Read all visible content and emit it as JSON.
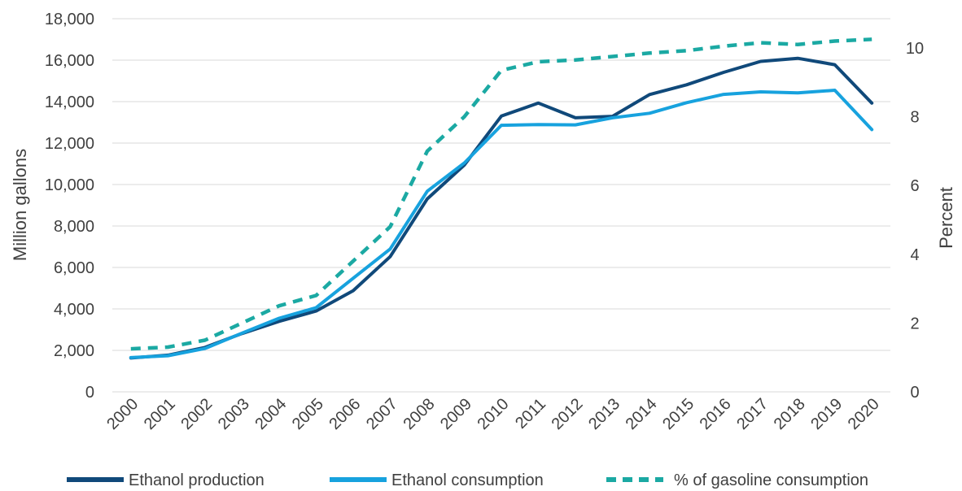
{
  "chart_data": {
    "type": "line",
    "x": [
      "2000",
      "2001",
      "2002",
      "2003",
      "2004",
      "2005",
      "2006",
      "2007",
      "2008",
      "2009",
      "2010",
      "2011",
      "2012",
      "2013",
      "2014",
      "2015",
      "2016",
      "2017",
      "2018",
      "2019",
      "2020"
    ],
    "ylabel": "Million gallons",
    "y2label": "Percent",
    "ylim": [
      0,
      18000
    ],
    "y2lim": [
      0,
      11
    ],
    "yticks": [
      "0",
      "2,000",
      "4,000",
      "6,000",
      "8,000",
      "10,000",
      "12,000",
      "14,000",
      "16,000",
      "18,000"
    ],
    "y2ticks": [
      "0",
      "2",
      "4",
      "6",
      "8",
      "10"
    ],
    "grid": true,
    "legend_position": "bottom",
    "series": [
      {
        "name": "Ethanol production",
        "axis": "left",
        "color": "#10497a",
        "style": "solid",
        "values": [
          1630,
          1770,
          2140,
          2810,
          3400,
          3900,
          4880,
          6520,
          9310,
          10940,
          13300,
          13930,
          13220,
          13290,
          14340,
          14810,
          15410,
          15940,
          16090,
          15780,
          13930
        ]
      },
      {
        "name": "Ethanol consumption",
        "axis": "left",
        "color": "#17a2de",
        "style": "solid",
        "values": [
          1650,
          1740,
          2090,
          2830,
          3550,
          4060,
          5480,
          6890,
          9680,
          11040,
          12860,
          12890,
          12880,
          13220,
          13440,
          13950,
          14350,
          14470,
          14420,
          14550,
          12650
        ]
      },
      {
        "name": "% of gasoline consumption",
        "axis": "right",
        "color": "#1ba9a3",
        "style": "dashed",
        "values": [
          1.25,
          1.3,
          1.5,
          2.0,
          2.5,
          2.8,
          3.8,
          4.8,
          7.0,
          8.0,
          9.35,
          9.6,
          9.65,
          9.75,
          9.85,
          9.92,
          10.05,
          10.15,
          10.1,
          10.2,
          10.25
        ]
      }
    ]
  }
}
